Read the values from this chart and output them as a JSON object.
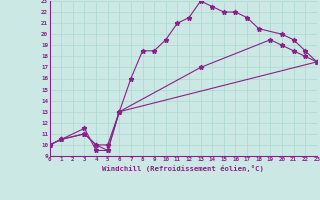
{
  "xlabel": "Windchill (Refroidissement éolien,°C)",
  "background_color": "#cce8e4",
  "grid_color": "#aad8d0",
  "line_color": "#882288",
  "xmin": 0,
  "xmax": 23,
  "ymin": 9,
  "ymax": 23,
  "series1": {
    "x": [
      0,
      1,
      3,
      4,
      5,
      6,
      7,
      8,
      9,
      10,
      11,
      12,
      13,
      14,
      15,
      16,
      17,
      18,
      20,
      21,
      22,
      23
    ],
    "y": [
      10,
      10.5,
      11.5,
      9.5,
      9.5,
      13.0,
      16.0,
      18.5,
      18.5,
      19.5,
      21.0,
      21.5,
      23.0,
      22.5,
      22.0,
      22.0,
      21.5,
      20.5,
      20.0,
      19.5,
      18.5,
      17.5
    ]
  },
  "series2": {
    "x": [
      0,
      1,
      3,
      4,
      5,
      6,
      13,
      19,
      20,
      21,
      22,
      23
    ],
    "y": [
      10.0,
      10.5,
      11.0,
      10.0,
      10.0,
      13.0,
      17.0,
      19.5,
      19.0,
      18.5,
      18.0,
      17.5
    ]
  },
  "series3": {
    "x": [
      0,
      1,
      3,
      4,
      5,
      6,
      23
    ],
    "y": [
      10.0,
      10.5,
      11.0,
      10.0,
      9.5,
      13.0,
      17.5
    ]
  }
}
